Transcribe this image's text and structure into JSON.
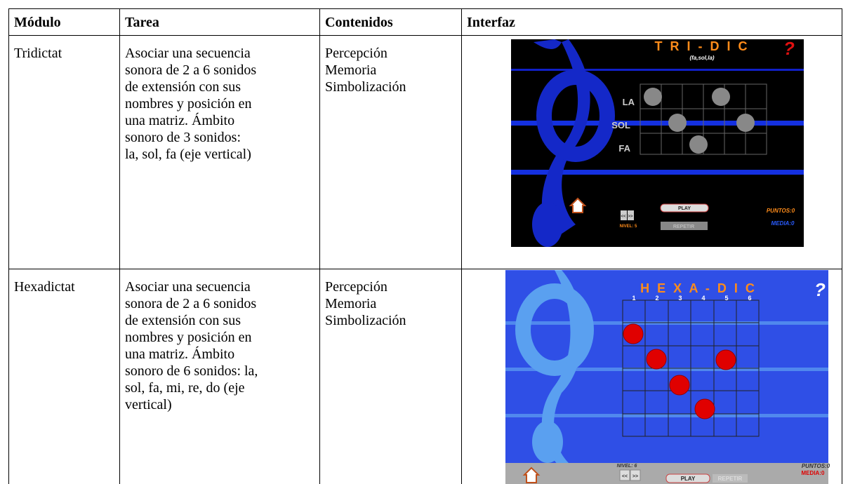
{
  "table": {
    "header": [
      "Módulo",
      "Tarea",
      "Contenidos",
      "Interfaz"
    ],
    "rows": [
      {
        "module": "Tridictat",
        "task": [
          "Asociar una secuencia",
          "sonora de 2 a 6 sonidos",
          "de extensión con sus",
          "nombres y posición en",
          "una matriz. Ámbito",
          "sonoro de 3 sonidos:",
          "la, sol, fa (eje vertical)"
        ],
        "contents": [
          "Percepción",
          "Memoria",
          "Simbolización"
        ],
        "interface": {
          "title": "T R I - D I C",
          "subtitle": "(fa,sol,la)",
          "help": "?",
          "notes": [
            "LA",
            "SOL",
            "FA"
          ],
          "play": "PLAY",
          "repeat": "REPETIR",
          "prev": "<<",
          "next": ">>",
          "level": "NIVEL: 5",
          "points": "PUNTOS:0",
          "average": "MEDIA:0"
        }
      },
      {
        "module": "Hexadictat",
        "task": [
          "Asociar una secuencia",
          "sonora de 2 a 6 sonidos",
          "de extensión con sus",
          "nombres y posición en",
          "una matriz. Ámbito",
          "sonoro de 6 sonidos: la,",
          "sol, fa, mi, re, do (eje",
          "vertical)"
        ],
        "contents": [
          "Percepción",
          "Memoria",
          "Simbolización"
        ],
        "interface": {
          "title": "H E X A - D I C",
          "help": "?",
          "columns": [
            "1",
            "2",
            "3",
            "4",
            "5",
            "6"
          ],
          "play": "PLAY",
          "repeat": "REPETIR",
          "prev": "<<",
          "next": ">>",
          "level": "NIVEL: 6",
          "points": "PUNTOS:0",
          "average": "MEDIA:0"
        }
      }
    ]
  }
}
